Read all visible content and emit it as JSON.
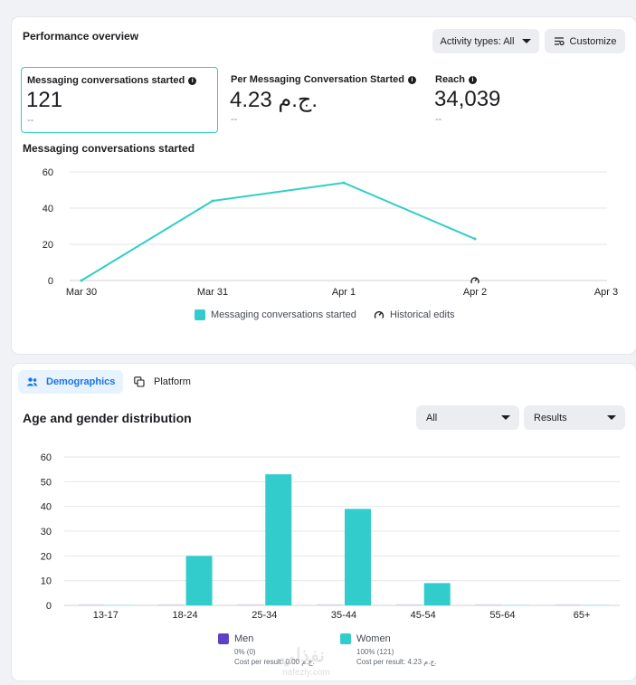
{
  "performance": {
    "title": "Performance overview",
    "activity_button": "Activity types: All",
    "customize_button": "Customize",
    "metrics": [
      {
        "label": "Messaging conversations started",
        "value": "121",
        "delta": "--"
      },
      {
        "label": "Per Messaging Conversation Started",
        "value": "4.23 ج.م.",
        "delta": "--"
      },
      {
        "label": "Reach",
        "value": "34,039",
        "delta": "--"
      }
    ],
    "chart_title": "Messaging conversations started",
    "legend_series": "Messaging conversations started",
    "legend_edits": "Historical edits"
  },
  "demographics": {
    "tab_demographics": "Demographics",
    "tab_platform": "Platform",
    "title": "Age and gender distribution",
    "filter_value": "All",
    "metric_value": "Results",
    "men": {
      "name": "Men",
      "share": "0% (0)",
      "cost": "Cost per result: 0.00 ج.م."
    },
    "women": {
      "name": "Women",
      "share": "100% (121)",
      "cost": "Cost per result: 4.23 ج.م."
    }
  },
  "colors": {
    "teal": "#33cccc",
    "purple": "#5e42c6",
    "line": "#2fcfc6"
  },
  "watermark": {
    "text": "نفذلي",
    "sub": "nafezly.com"
  },
  "chart_data": [
    {
      "type": "line",
      "title": "Messaging conversations started",
      "x": [
        "Mar 30",
        "Mar 31",
        "Apr 1",
        "Apr 2",
        "Apr 3"
      ],
      "series": [
        {
          "name": "Messaging conversations started",
          "values": [
            0,
            44,
            54,
            23,
            null
          ]
        }
      ],
      "ylim": [
        0,
        60
      ],
      "yticks": [
        0,
        20,
        40,
        60
      ],
      "grid": true,
      "legend": "bottom",
      "annotations": [
        {
          "x": "Apr 2",
          "label": "Historical edits"
        }
      ]
    },
    {
      "type": "bar",
      "title": "Age and gender distribution",
      "categories": [
        "13-17",
        "18-24",
        "25-34",
        "35-44",
        "45-54",
        "55-64",
        "65+"
      ],
      "series": [
        {
          "name": "Men",
          "values": [
            0,
            0,
            0,
            0,
            0,
            0,
            0
          ]
        },
        {
          "name": "Women",
          "values": [
            0,
            20,
            53,
            39,
            9,
            0,
            0
          ]
        }
      ],
      "ylim": [
        0,
        60
      ],
      "yticks": [
        0,
        10,
        20,
        30,
        40,
        50,
        60
      ],
      "grid": true,
      "legend": "bottom"
    }
  ]
}
